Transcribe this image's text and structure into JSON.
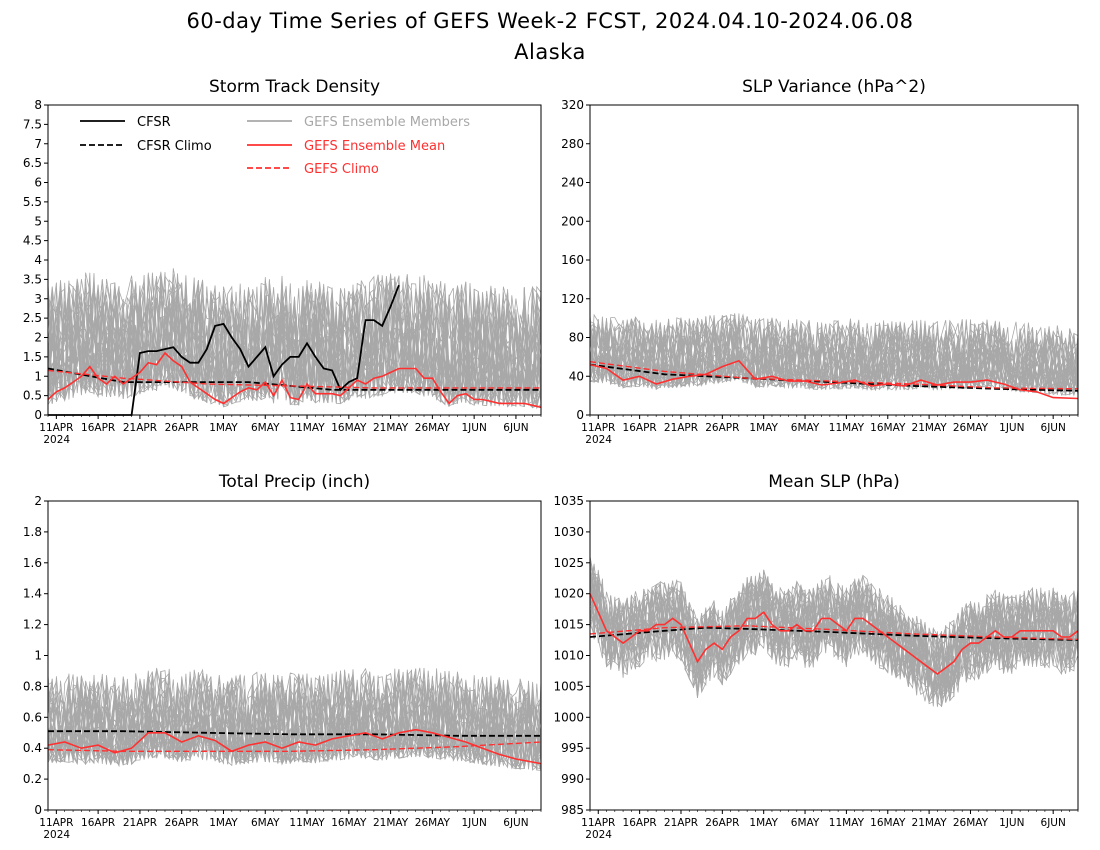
{
  "page": {
    "title": "60-day Time Series of GEFS Week-2 FCST, 2024.04.10-2024.06.08",
    "subtitle": "Alaska"
  },
  "legend": {
    "cfsr": "CFSR",
    "cfsr_climo": "CFSR Climo",
    "members": "GEFS Ensemble Members",
    "mean": "GEFS Ensemble Mean",
    "gefs_climo": "GEFS Climo"
  },
  "colors": {
    "cfsr": "#000000",
    "cfsr_climo": "#000000",
    "members": "#a8a8a8",
    "mean": "#ff3030",
    "gefs_climo": "#ff3030"
  },
  "x_ticks": [
    "11APR",
    "16APR",
    "21APR",
    "26APR",
    "1MAY",
    "6MAY",
    "11MAY",
    "16MAY",
    "21MAY",
    "26MAY",
    "1JUN",
    "6JUN"
  ],
  "x_year": "2024",
  "chart_data": [
    {
      "type": "line",
      "title": "Storm Track Density",
      "ylim": [
        0,
        8
      ],
      "yticks": [
        "0",
        "0.5",
        "1",
        "1.5",
        "2",
        "2.5",
        "3",
        "3.5",
        "4",
        "4.5",
        "5",
        "5.5",
        "6",
        "6.5",
        "7",
        "7.5",
        "8"
      ],
      "x_day_range": [
        1,
        60
      ],
      "members_band": {
        "low": 0.1,
        "high": 3.6
      },
      "series": [
        {
          "name": "CFSR",
          "style": "solid-black",
          "x": [
            1,
            2,
            3,
            4,
            5,
            6,
            7,
            8,
            9,
            10,
            11,
            12,
            13,
            14,
            15,
            16,
            17,
            18,
            19,
            20,
            21,
            22,
            23,
            24,
            25,
            26,
            27,
            28,
            29,
            30,
            31,
            32,
            33,
            34,
            35,
            36,
            37,
            38,
            39,
            40,
            41,
            42,
            43
          ],
          "values": [
            0,
            0,
            0,
            0,
            0,
            0,
            0,
            0,
            0,
            0,
            0,
            1.6,
            1.65,
            1.65,
            1.7,
            1.75,
            1.5,
            1.35,
            1.35,
            1.7,
            2.3,
            2.35,
            2.0,
            1.7,
            1.25,
            1.5,
            1.75,
            1.0,
            1.3,
            1.5,
            1.5,
            1.85,
            1.5,
            1.2,
            1.15,
            0.65,
            0.85,
            0.95,
            2.45,
            2.45,
            2.3,
            2.8,
            3.35
          ]
        },
        {
          "name": "CFSR Climo",
          "style": "dashed-black",
          "x": [
            1,
            10,
            20,
            25,
            30,
            35,
            40,
            50,
            60
          ],
          "values": [
            1.2,
            0.85,
            0.85,
            0.85,
            0.75,
            0.65,
            0.65,
            0.65,
            0.65
          ]
        },
        {
          "name": "GEFS Ensemble Mean",
          "style": "solid-red",
          "x": [
            1,
            2,
            3,
            4,
            5,
            6,
            7,
            8,
            9,
            10,
            11,
            12,
            13,
            14,
            15,
            16,
            17,
            18,
            19,
            20,
            21,
            22,
            23,
            24,
            25,
            26,
            27,
            28,
            29,
            30,
            31,
            32,
            33,
            34,
            35,
            36,
            37,
            38,
            39,
            40,
            41,
            42,
            43,
            44,
            45,
            46,
            47,
            48,
            49,
            50,
            51,
            52,
            53,
            54,
            55,
            56,
            57,
            58,
            59,
            60
          ],
          "values": [
            0.4,
            0.6,
            0.7,
            0.85,
            1.0,
            1.25,
            0.95,
            0.8,
            1.0,
            0.8,
            0.95,
            1.1,
            1.35,
            1.3,
            1.6,
            1.4,
            1.25,
            0.85,
            0.7,
            0.55,
            0.4,
            0.3,
            0.45,
            0.6,
            0.7,
            0.65,
            0.85,
            0.5,
            0.9,
            0.45,
            0.4,
            0.8,
            0.55,
            0.55,
            0.55,
            0.5,
            0.7,
            0.9,
            0.8,
            0.95,
            1.0,
            1.1,
            1.2,
            1.2,
            1.2,
            0.95,
            0.95,
            0.6,
            0.3,
            0.5,
            0.55,
            0.4,
            0.4,
            0.35,
            0.3,
            0.3,
            0.3,
            0.3,
            0.25,
            0.2
          ]
        },
        {
          "name": "GEFS Climo",
          "style": "dashed-red",
          "x": [
            1,
            10,
            20,
            30,
            40,
            50,
            60
          ],
          "values": [
            1.15,
            0.95,
            0.8,
            0.75,
            0.7,
            0.7,
            0.7
          ]
        }
      ]
    },
    {
      "type": "line",
      "title": "SLP Variance (hPa^2)",
      "ylim": [
        0,
        320
      ],
      "yticks": [
        "0",
        "40",
        "80",
        "120",
        "160",
        "200",
        "240",
        "280",
        "320"
      ],
      "x_day_range": [
        1,
        60
      ],
      "members_band": {
        "low": 15,
        "high": 95
      },
      "series": [
        {
          "name": "CFSR Climo",
          "style": "dashed-black",
          "x": [
            1,
            10,
            20,
            30,
            40,
            50,
            60
          ],
          "values": [
            52,
            42,
            38,
            34,
            30,
            27,
            25
          ]
        },
        {
          "name": "GEFS Ensemble Mean",
          "style": "solid-red",
          "x": [
            1,
            3,
            5,
            7,
            9,
            11,
            13,
            15,
            17,
            19,
            21,
            23,
            25,
            27,
            29,
            31,
            33,
            35,
            37,
            39,
            41,
            43,
            45,
            47,
            49,
            51,
            53,
            55,
            57,
            60
          ],
          "values": [
            52,
            48,
            36,
            40,
            32,
            37,
            40,
            42,
            50,
            56,
            37,
            40,
            35,
            35,
            31,
            33,
            36,
            30,
            32,
            30,
            36,
            31,
            34,
            34,
            36,
            32,
            26,
            24,
            18,
            17
          ]
        },
        {
          "name": "GEFS Climo",
          "style": "dashed-red",
          "x": [
            1,
            10,
            20,
            30,
            40,
            50,
            60
          ],
          "values": [
            55,
            45,
            38,
            35,
            32,
            28,
            27
          ]
        }
      ]
    },
    {
      "type": "line",
      "title": "Total Precip (inch)",
      "ylim": [
        0,
        2
      ],
      "yticks": [
        "0",
        "0.2",
        "0.4",
        "0.6",
        "0.8",
        "1",
        "1.2",
        "1.4",
        "1.6",
        "1.8",
        "2"
      ],
      "x_day_range": [
        1,
        60
      ],
      "members_band": {
        "low": 0.15,
        "high": 0.8
      },
      "series": [
        {
          "name": "CFSR Climo",
          "style": "dashed-black",
          "x": [
            1,
            10,
            20,
            30,
            40,
            50,
            60
          ],
          "values": [
            0.51,
            0.51,
            0.5,
            0.49,
            0.49,
            0.48,
            0.48
          ]
        },
        {
          "name": "GEFS Ensemble Mean",
          "style": "solid-red",
          "x": [
            1,
            3,
            5,
            7,
            9,
            11,
            13,
            15,
            17,
            19,
            21,
            23,
            25,
            27,
            29,
            31,
            33,
            35,
            37,
            39,
            41,
            43,
            45,
            47,
            49,
            51,
            53,
            55,
            57,
            60
          ],
          "values": [
            0.42,
            0.44,
            0.4,
            0.42,
            0.37,
            0.4,
            0.5,
            0.5,
            0.44,
            0.48,
            0.45,
            0.38,
            0.42,
            0.44,
            0.4,
            0.44,
            0.42,
            0.46,
            0.48,
            0.5,
            0.46,
            0.5,
            0.52,
            0.5,
            0.47,
            0.44,
            0.4,
            0.36,
            0.33,
            0.3
          ]
        },
        {
          "name": "GEFS Climo",
          "style": "dashed-red",
          "x": [
            1,
            10,
            20,
            30,
            40,
            50,
            60
          ],
          "values": [
            0.39,
            0.38,
            0.38,
            0.38,
            0.39,
            0.41,
            0.44
          ]
        }
      ]
    },
    {
      "type": "line",
      "title": "Mean SLP (hPa)",
      "ylim": [
        985,
        1035
      ],
      "yticks": [
        "985",
        "990",
        "995",
        "1000",
        "1005",
        "1010",
        "1015",
        "1020",
        "1025",
        "1030",
        "1035"
      ],
      "x_day_range": [
        1,
        60
      ],
      "members_band": {
        "low": -6,
        "high": 7
      },
      "series": [
        {
          "name": "CFSR Climo",
          "style": "dashed-black",
          "x": [
            1,
            10,
            15,
            20,
            30,
            40,
            50,
            60
          ],
          "values": [
            1013,
            1014,
            1014.5,
            1014.3,
            1013.8,
            1013.2,
            1012.8,
            1012.5
          ]
        },
        {
          "name": "GEFS Ensemble Mean",
          "style": "solid-red",
          "x": [
            1,
            2,
            3,
            4,
            5,
            6,
            7,
            8,
            9,
            10,
            11,
            12,
            13,
            14,
            15,
            16,
            17,
            18,
            19,
            20,
            21,
            22,
            23,
            24,
            25,
            26,
            27,
            28,
            29,
            30,
            31,
            32,
            33,
            34,
            35,
            36,
            37,
            38,
            39,
            40,
            41,
            42,
            43,
            44,
            45,
            46,
            47,
            48,
            49,
            50,
            51,
            52,
            53,
            54,
            55,
            56,
            57,
            58,
            59,
            60
          ],
          "values": [
            1020,
            1017,
            1014,
            1013,
            1012,
            1013,
            1014,
            1014,
            1015,
            1015,
            1016,
            1015,
            1012,
            1009,
            1011,
            1012,
            1011,
            1013,
            1014,
            1016,
            1016,
            1017,
            1015,
            1014,
            1014,
            1015,
            1014,
            1014,
            1016,
            1016,
            1015,
            1014,
            1016,
            1016,
            1015,
            1014,
            1013,
            1012,
            1011,
            1010,
            1009,
            1008,
            1007,
            1008,
            1009,
            1011,
            1012,
            1012,
            1013,
            1014,
            1013,
            1013,
            1014,
            1014,
            1014,
            1014,
            1014,
            1013,
            1013,
            1014
          ]
        },
        {
          "name": "GEFS Climo",
          "style": "dashed-red",
          "x": [
            1,
            10,
            20,
            30,
            40,
            50,
            60
          ],
          "values": [
            1013.5,
            1014.5,
            1014.8,
            1014.2,
            1013.5,
            1013,
            1012.6
          ]
        }
      ]
    }
  ]
}
